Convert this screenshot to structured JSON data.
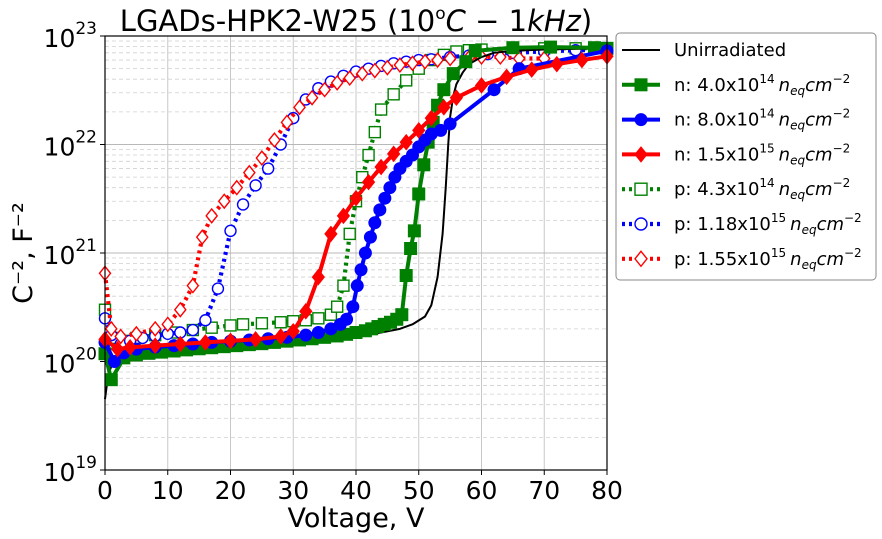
{
  "chart_data": {
    "type": "line",
    "title": {
      "prefix": "LGADs-HPK2-W25 (",
      "base": "10",
      "exp": "o",
      "unit_c": "C",
      "sep": " − 1",
      "freq": "kHz",
      "suffix": ")"
    },
    "xlabel": "Voltage, V",
    "ylabel": "C⁻², F⁻²",
    "xlim": [
      0,
      80
    ],
    "ylim_log10": [
      19,
      23
    ],
    "yscale": "log",
    "grid": "major and minor",
    "legend_position": "outside-right",
    "x_ticks": [
      "0",
      "10",
      "20",
      "30",
      "40",
      "50",
      "60",
      "70",
      "80"
    ],
    "y_ticks": [
      {
        "base": "10",
        "exp": "19"
      },
      {
        "base": "10",
        "exp": "20"
      },
      {
        "base": "10",
        "exp": "21"
      },
      {
        "base": "10",
        "exp": "22"
      },
      {
        "base": "10",
        "exp": "23"
      }
    ],
    "series": [
      {
        "name": "Unirradiated",
        "legend": {
          "prefix": "Unirradiated",
          "value": "",
          "exp": "",
          "unit_n": "",
          "unit_sub": "",
          "unit_cm": "",
          "unit_exp": ""
        },
        "color": "#000000",
        "style": "solid",
        "marker": "none",
        "filled": false,
        "width": "thin",
        "x": [
          0,
          0.5,
          1,
          2,
          4,
          6,
          10,
          15,
          20,
          25,
          30,
          35,
          40,
          44,
          47,
          49,
          51,
          52,
          53,
          53.8,
          54.3,
          54.7,
          55,
          55.5,
          56,
          57,
          58,
          60,
          62,
          65,
          70,
          75,
          80
        ],
        "y": [
          4.5e+19,
          7.5e+19,
          9e+19,
          1.08e+20,
          1.15e+20,
          1.2e+20,
          1.27e+20,
          1.33e+20,
          1.4e+20,
          1.45e+20,
          1.52e+20,
          1.6e+20,
          1.72e+20,
          1.85e+20,
          2e+20,
          2.2e+20,
          2.6e+20,
          3.3e+20,
          6e+20,
          1.5e+21,
          4e+21,
          1e+22,
          1.8e+22,
          2.8e+22,
          3.6e+22,
          4.6e+22,
          5.5e+22,
          6.4e+22,
          7e+22,
          7.3e+22,
          7.5e+22,
          7.6e+22,
          7.7e+22
        ]
      },
      {
        "name": "n: 4.0x10^14 neq cm^-2",
        "legend": {
          "prefix": "n: ",
          "value": "4.0x10",
          "exp": "14",
          "unit_n": "n",
          "unit_sub": "eq",
          "unit_cm": "cm",
          "unit_exp": "−2"
        },
        "color": "#008000",
        "style": "solid",
        "marker": "square",
        "filled": true,
        "width": "thick",
        "x": [
          0,
          1,
          3,
          5,
          7,
          9,
          11,
          13,
          15,
          17,
          19,
          21,
          23,
          25,
          27,
          29,
          31,
          33,
          35,
          37,
          38.5,
          40,
          41.5,
          42.5,
          43.5,
          44.5,
          45.5,
          46.5,
          47.3,
          48,
          48.7,
          49.3,
          50,
          50.8,
          51.5,
          52.3,
          53,
          54,
          55.5,
          57.5,
          59,
          65,
          71,
          78,
          80
        ],
        "y": [
          1.18e+20,
          6.8e+19,
          1.08e+20,
          1.15e+20,
          1.19e+20,
          1.22e+20,
          1.25e+20,
          1.28e+20,
          1.31e+20,
          1.34e+20,
          1.37e+20,
          1.4e+20,
          1.43e+20,
          1.46e+20,
          1.5e+20,
          1.54e+20,
          1.58e+20,
          1.62e+20,
          1.67e+20,
          1.72e+20,
          1.78e+20,
          1.85e+20,
          1.92e+20,
          2e+20,
          2.1e+20,
          2.2e+20,
          2.3e+20,
          2.45e+20,
          2.7e+20,
          6.2e+20,
          1.1e+21,
          1.6e+21,
          3.5e+21,
          6.5e+21,
          1.05e+22,
          1.6e+22,
          2.3e+22,
          3.2e+22,
          4.5e+22,
          5.8e+22,
          7.3e+22,
          7.8e+22,
          7.9e+22,
          7.8e+22,
          7.7e+22
        ]
      },
      {
        "name": "n: 8.0x10^14 neq cm^-2",
        "legend": {
          "prefix": "n: ",
          "value": "8.0x10",
          "exp": "14",
          "unit_n": "n",
          "unit_sub": "eq",
          "unit_cm": "cm",
          "unit_exp": "−2"
        },
        "color": "#0000ff",
        "style": "solid",
        "marker": "circle",
        "filled": true,
        "width": "thick",
        "x": [
          0,
          1.5,
          3,
          5,
          8,
          11,
          14,
          17,
          20,
          23,
          26,
          29,
          32,
          34,
          36,
          37.5,
          38.5,
          39.5,
          40.2,
          40.8,
          41.5,
          42.3,
          43,
          43.8,
          44.6,
          45.4,
          46.2,
          47,
          48,
          49,
          50,
          51,
          52,
          53.5,
          55,
          62,
          66,
          80
        ],
        "y": [
          1.5e+20,
          1e+20,
          1.2e+20,
          1.3e+20,
          1.36e+20,
          1.4e+20,
          1.45e+20,
          1.5e+20,
          1.54e+20,
          1.58e+20,
          1.62e+20,
          1.67e+20,
          1.75e+20,
          1.85e+20,
          2e+20,
          2.2e+20,
          2.45e+20,
          3.2e+20,
          5e+20,
          7e+20,
          1e+21,
          1.4e+21,
          1.9e+21,
          2.5e+21,
          3.2e+21,
          4e+21,
          5e+21,
          6e+21,
          7e+21,
          8e+21,
          9.5e+21,
          1.1e+22,
          1.25e+22,
          1.35e+22,
          1.55e+22,
          3.2e+22,
          5e+22,
          7.3e+22
        ]
      },
      {
        "name": "n: 1.5x10^15 neq cm^-2",
        "legend": {
          "prefix": "n: ",
          "value": "1.5x10",
          "exp": "15",
          "unit_n": "n",
          "unit_sub": "eq",
          "unit_cm": "cm",
          "unit_exp": "−2"
        },
        "color": "#ff0000",
        "style": "solid",
        "marker": "diamond",
        "filled": true,
        "width": "thick",
        "x": [
          0,
          2,
          4,
          8,
          12,
          16,
          20,
          24,
          28,
          30,
          32,
          34,
          36,
          38,
          40,
          42,
          44,
          46,
          48,
          50,
          52,
          54,
          56,
          60,
          64,
          68,
          72,
          76,
          80
        ],
        "y": [
          1.6e+20,
          1.3e+20,
          1.35e+20,
          1.4e+20,
          1.45e+20,
          1.5e+20,
          1.55e+20,
          1.6e+20,
          1.7e+20,
          1.9e+20,
          2.9e+20,
          6e+20,
          1.5e+21,
          2.2e+21,
          3.2e+21,
          4.5e+21,
          6.2e+21,
          8.2e+21,
          1.05e+22,
          1.35e+22,
          1.75e+22,
          2.2e+22,
          2.7e+22,
          3.5e+22,
          4.2e+22,
          4.9e+22,
          5.5e+22,
          6e+22,
          6.5e+22
        ]
      },
      {
        "name": "p: 4.3x10^14 neq cm^-2",
        "legend": {
          "prefix": "p: ",
          "value": "4.3x10",
          "exp": "14",
          "unit_n": "n",
          "unit_sub": "eq",
          "unit_cm": "cm",
          "unit_exp": "−2"
        },
        "color": "#008000",
        "style": "dotted",
        "marker": "square",
        "filled": false,
        "width": "thick",
        "x": [
          0,
          1.5,
          3,
          5,
          8,
          11,
          14,
          17,
          20,
          22,
          25,
          28,
          30,
          32,
          34,
          36,
          37,
          38,
          39,
          40,
          41,
          42,
          43,
          44,
          46,
          48,
          50,
          52,
          54,
          56,
          58,
          60,
          65,
          70,
          75,
          80
        ],
        "y": [
          3e+20,
          1.65e+20,
          1.55e+20,
          1.65e+20,
          1.75e+20,
          1.85e+20,
          1.95e+20,
          2.05e+20,
          2.15e+20,
          2.2e+20,
          2.25e+20,
          2.3e+20,
          2.35e+20,
          2.4e+20,
          2.5e+20,
          2.7e+20,
          3.2e+20,
          5e+20,
          1.5e+21,
          3e+21,
          5e+21,
          8e+21,
          1.3e+22,
          2.1e+22,
          2.9e+22,
          3.9e+22,
          5e+22,
          6e+22,
          6.7e+22,
          7.2e+22,
          7.4e+22,
          7.5e+22,
          7.6e+22,
          7.7e+22,
          7.7e+22,
          7.7e+22
        ]
      },
      {
        "name": "p: 1.18x10^15 neq cm^-2",
        "legend": {
          "prefix": "p: ",
          "value": "1.18x10",
          "exp": "15",
          "unit_n": "n",
          "unit_sub": "eq",
          "unit_cm": "cm",
          "unit_exp": "−2"
        },
        "color": "#0000ff",
        "style": "dotted",
        "marker": "circle",
        "filled": false,
        "width": "thick",
        "x": [
          0,
          1,
          2.5,
          4,
          6,
          8,
          10,
          12,
          14,
          16,
          18,
          20,
          22,
          24,
          26,
          28,
          30,
          32,
          34,
          36,
          38,
          40,
          42,
          44,
          46,
          48,
          50,
          52,
          55,
          58,
          61,
          65,
          70,
          75,
          80
        ],
        "y": [
          2.5e+20,
          1.75e+20,
          1.45e+20,
          1.55e+20,
          1.65e+20,
          1.72e+20,
          1.8e+20,
          1.85e+20,
          1.95e+20,
          2.4e+20,
          4.7e+20,
          1.6e+21,
          2.8e+21,
          4.2e+21,
          6e+21,
          1e+22,
          1.75e+22,
          2.6e+22,
          3.3e+22,
          3.8e+22,
          4.3e+22,
          4.7e+22,
          5e+22,
          5.3e+22,
          5.6e+22,
          5.8e+22,
          6e+22,
          6.1e+22,
          6.4e+22,
          6.6e+22,
          6.8e+22,
          7e+22,
          7.2e+22,
          7.4e+22,
          7.5e+22
        ]
      },
      {
        "name": "p: 1.55x10^15 neq cm^-2",
        "legend": {
          "prefix": "p: ",
          "value": "1.55x10",
          "exp": "15",
          "unit_n": "n",
          "unit_sub": "eq",
          "unit_cm": "cm",
          "unit_exp": "−2"
        },
        "color": "#ff0000",
        "style": "dotted",
        "marker": "diamond",
        "filled": false,
        "width": "thick",
        "x": [
          0,
          1,
          2.5,
          5,
          8,
          10,
          12,
          14,
          15.5,
          17,
          19,
          21,
          23,
          25,
          27,
          29,
          31,
          33,
          35,
          37,
          39,
          41,
          43,
          45,
          47,
          49,
          51,
          53,
          55,
          58,
          60,
          63,
          66,
          70
        ],
        "y": [
          6.5e+20,
          2e+20,
          1.7e+20,
          1.8e+20,
          2e+20,
          2.2e+20,
          3e+20,
          5e+20,
          1.4e+21,
          2.2e+21,
          3e+21,
          4e+21,
          5.5e+21,
          7.5e+21,
          1.1e+22,
          1.6e+22,
          2.2e+22,
          2.7e+22,
          3.2e+22,
          3.7e+22,
          4.1e+22,
          4.5e+22,
          4.8e+22,
          5.1e+22,
          5.4e+22,
          5.6e+22,
          5.8e+22,
          6e+22,
          6.2e+22,
          6.3e+22,
          6.4e+22,
          6.4e+22,
          6.2e+22,
          6.2e+22
        ]
      }
    ]
  }
}
